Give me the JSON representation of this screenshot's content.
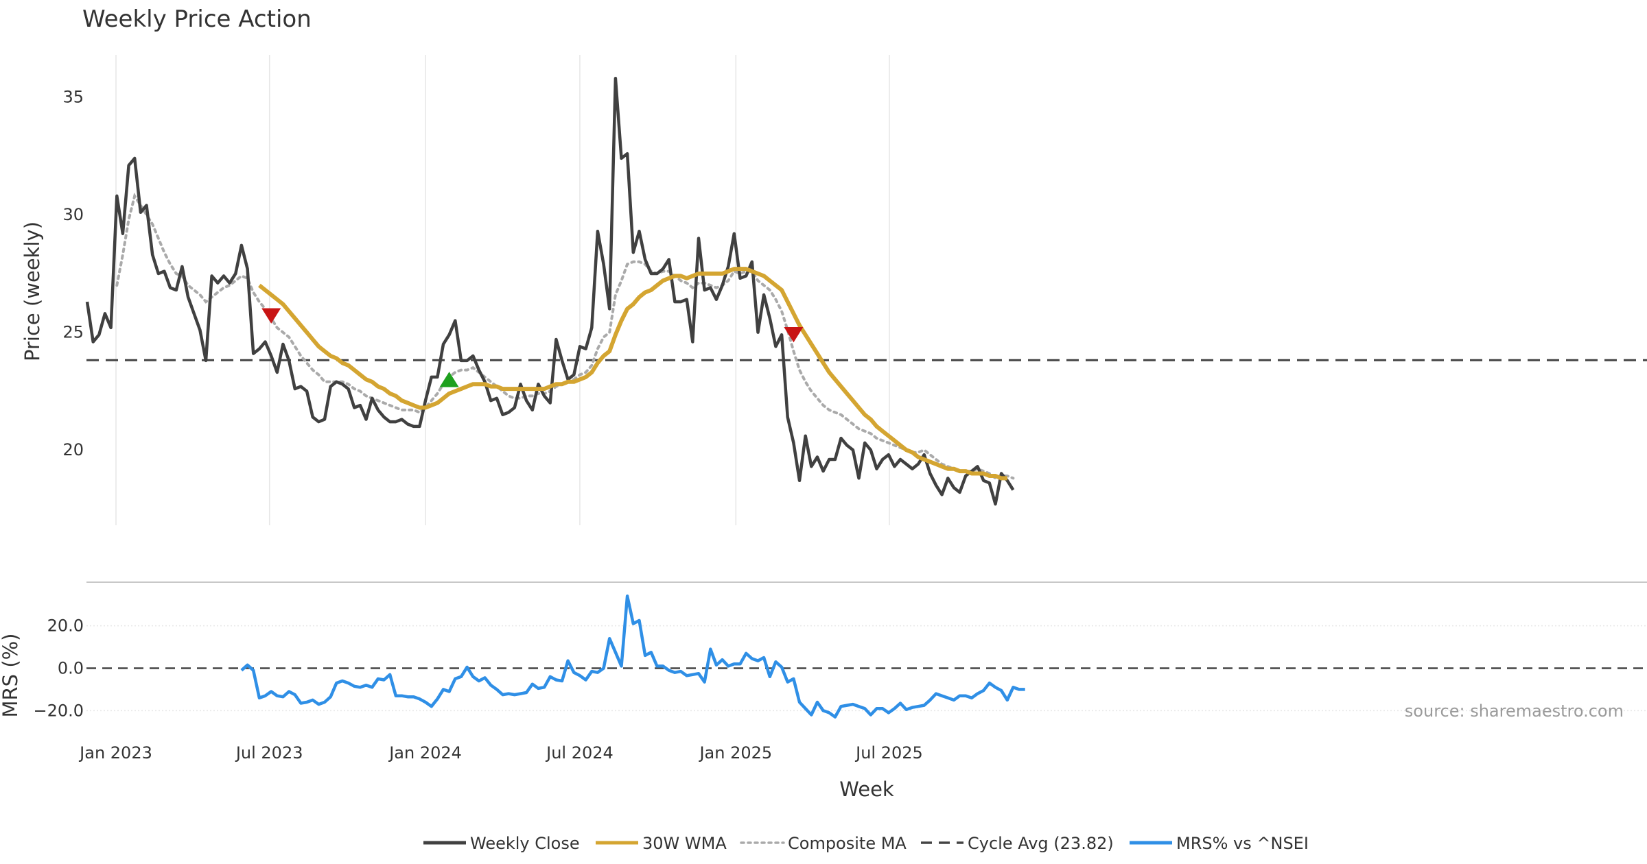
{
  "chart_data": {
    "type": "line",
    "title": "Weekly Price Action",
    "xlabel": "Week",
    "source": "source: sharemaestro.com",
    "colors": {
      "close": "#404040",
      "wma": "#d4a531",
      "composite": "#aaaaaa",
      "cycle": "#444444",
      "mrs": "#2f8fe6",
      "sell_marker": "#c81414",
      "buy_marker": "#1ea01e",
      "grid": "#e6e6e6"
    },
    "x_ticks": [
      "Jan 2023",
      "Jul 2023",
      "Jan 2024",
      "Jul 2024",
      "Jan 2025",
      "Jul 2025"
    ],
    "start_week": "2022-11-28",
    "legend": [
      {
        "label": "Weekly Close",
        "style": "solid",
        "color": "#404040"
      },
      {
        "label": "30W WMA",
        "style": "solid",
        "color": "#d4a531"
      },
      {
        "label": "Composite MA",
        "style": "dotted",
        "color": "#aaaaaa"
      },
      {
        "label": "Cycle Avg (23.82)",
        "style": "dashed",
        "color": "#444444"
      },
      {
        "label": "MRS% vs ^NSEI",
        "style": "solid",
        "color": "#2f8fe6"
      }
    ],
    "price_panel": {
      "ylabel": "Price (weekly)",
      "ylim": [
        16.8,
        36.8
      ],
      "yticks": [
        20,
        25,
        30,
        35
      ],
      "cycle_avg": 23.82,
      "weekly_close": [
        26.3,
        24.6,
        24.9,
        25.8,
        25.2,
        30.8,
        29.2,
        32.1,
        32.4,
        30.1,
        30.4,
        28.3,
        27.5,
        27.6,
        26.9,
        26.8,
        27.8,
        26.5,
        25.8,
        25.1,
        23.8,
        27.4,
        27.1,
        27.4,
        27.1,
        27.5,
        28.7,
        27.7,
        24.1,
        24.3,
        24.6,
        24.0,
        23.3,
        24.5,
        23.8,
        22.6,
        22.7,
        22.5,
        21.4,
        21.2,
        21.3,
        22.7,
        22.9,
        22.8,
        22.6,
        21.8,
        21.9,
        21.3,
        22.2,
        21.7,
        21.4,
        21.2,
        21.2,
        21.3,
        21.1,
        21.0,
        21.0,
        22.1,
        23.1,
        23.1,
        24.5,
        24.9,
        25.5,
        23.8,
        23.8,
        24.0,
        23.4,
        22.9,
        22.1,
        22.2,
        21.5,
        21.6,
        21.8,
        22.8,
        22.1,
        21.7,
        22.8,
        22.3,
        22.0,
        24.7,
        23.8,
        23.0,
        23.2,
        24.4,
        24.3,
        25.2,
        29.3,
        27.9,
        26.0,
        35.8,
        32.4,
        32.6,
        28.4,
        29.3,
        28.1,
        27.5,
        27.5,
        27.7,
        28.1,
        26.3,
        26.3,
        26.4,
        24.6,
        29.0,
        26.8,
        26.9,
        26.4,
        27.0,
        27.8,
        29.2,
        27.3,
        27.4,
        28.0,
        25.0,
        26.6,
        25.6,
        24.4,
        24.9,
        21.4,
        20.3,
        18.7,
        20.6,
        19.3,
        19.7,
        19.1,
        19.6,
        19.6,
        20.5,
        20.2,
        20.0,
        18.8,
        20.3,
        20.0,
        19.2,
        19.6,
        19.8,
        19.3,
        19.6,
        19.4,
        19.2,
        19.4,
        19.8,
        19.0,
        18.5,
        18.1,
        18.8,
        18.4,
        18.2,
        18.9,
        19.1,
        19.3,
        18.7,
        18.6,
        17.7,
        19.0,
        18.7,
        18.3
      ],
      "composite_ma": [
        null,
        null,
        null,
        null,
        null,
        27.0,
        28.3,
        29.8,
        30.8,
        30.4,
        30.0,
        29.6,
        29.0,
        28.4,
        27.9,
        27.5,
        27.4,
        27.0,
        26.8,
        26.6,
        26.3,
        26.5,
        26.7,
        26.9,
        27.0,
        27.2,
        27.4,
        27.3,
        26.7,
        26.3,
        26.0,
        25.6,
        25.2,
        25.0,
        24.8,
        24.4,
        24.0,
        23.7,
        23.4,
        23.2,
        22.9,
        22.9,
        22.9,
        22.9,
        22.8,
        22.6,
        22.5,
        22.3,
        22.2,
        22.1,
        22.0,
        21.9,
        21.8,
        21.7,
        21.7,
        21.7,
        21.6,
        21.8,
        22.1,
        22.4,
        22.8,
        23.1,
        23.3,
        23.4,
        23.4,
        23.5,
        23.3,
        23.1,
        22.9,
        22.7,
        22.5,
        22.3,
        22.2,
        22.2,
        22.3,
        22.3,
        22.4,
        22.4,
        22.5,
        22.7,
        22.8,
        22.9,
        23.0,
        23.2,
        23.3,
        23.6,
        24.3,
        24.8,
        25.0,
        26.6,
        27.2,
        27.9,
        28.0,
        28.0,
        27.9,
        27.6,
        27.5,
        27.6,
        27.6,
        27.4,
        27.2,
        27.1,
        26.9,
        27.1,
        27.1,
        27.0,
        26.9,
        27.0,
        27.2,
        27.6,
        27.5,
        27.6,
        27.6,
        27.2,
        27.0,
        26.8,
        26.4,
        25.9,
        25.1,
        24.2,
        23.4,
        22.9,
        22.5,
        22.2,
        21.9,
        21.7,
        21.6,
        21.5,
        21.3,
        21.1,
        20.9,
        20.8,
        20.7,
        20.5,
        20.4,
        20.3,
        20.2,
        20.1,
        20.0,
        19.9,
        19.9,
        20.0,
        19.8,
        19.6,
        19.4,
        19.3,
        19.2,
        19.1,
        19.1,
        19.1,
        19.2,
        19.1,
        19.0,
        18.8,
        18.9,
        18.9,
        18.8
      ],
      "wma_30w": [
        null,
        null,
        null,
        null,
        null,
        null,
        null,
        null,
        null,
        null,
        null,
        null,
        null,
        null,
        null,
        null,
        null,
        null,
        null,
        null,
        null,
        null,
        null,
        null,
        null,
        null,
        null,
        null,
        null,
        27.0,
        26.8,
        26.6,
        26.4,
        26.2,
        25.9,
        25.6,
        25.3,
        25.0,
        24.7,
        24.4,
        24.2,
        24.0,
        23.9,
        23.7,
        23.6,
        23.4,
        23.2,
        23.0,
        22.9,
        22.7,
        22.6,
        22.4,
        22.3,
        22.1,
        22.0,
        21.9,
        21.8,
        21.8,
        21.9,
        22.0,
        22.2,
        22.4,
        22.5,
        22.6,
        22.7,
        22.8,
        22.8,
        22.8,
        22.7,
        22.7,
        22.6,
        22.6,
        22.6,
        22.6,
        22.6,
        22.6,
        22.6,
        22.6,
        22.7,
        22.8,
        22.8,
        22.9,
        22.9,
        23.0,
        23.1,
        23.3,
        23.7,
        24.0,
        24.2,
        24.9,
        25.5,
        26.0,
        26.2,
        26.5,
        26.7,
        26.8,
        27.0,
        27.2,
        27.3,
        27.4,
        27.4,
        27.3,
        27.4,
        27.5,
        27.5,
        27.5,
        27.5,
        27.5,
        27.6,
        27.7,
        27.7,
        27.7,
        27.6,
        27.5,
        27.4,
        27.2,
        27.0,
        26.8,
        26.3,
        25.8,
        25.3,
        24.9,
        24.5,
        24.1,
        23.7,
        23.3,
        23.0,
        22.7,
        22.4,
        22.1,
        21.8,
        21.5,
        21.3,
        21.0,
        20.8,
        20.6,
        20.4,
        20.2,
        20.0,
        19.9,
        19.7,
        19.6,
        19.5,
        19.4,
        19.3,
        19.2,
        19.2,
        19.1,
        19.1,
        19.0,
        19.0,
        19.0,
        18.9,
        18.9,
        18.8,
        18.8
      ],
      "markers": [
        {
          "type": "sell",
          "week_index": 31,
          "price": 25.7
        },
        {
          "type": "buy",
          "week_index": 61,
          "price": 23.0
        },
        {
          "type": "sell",
          "week_index": 119,
          "price": 24.9
        }
      ]
    },
    "mrs_panel": {
      "ylabel": "MRS (%)",
      "ylim": [
        -27,
        37
      ],
      "yticks": [
        -20.0,
        0.0,
        20.0
      ],
      "ytick_labels": [
        "−20.0",
        "0.0",
        "20.0"
      ],
      "start_index": 26,
      "mrs_pct": [
        -1.0,
        1.5,
        -1.0,
        -14.0,
        -13.0,
        -11.0,
        -13.0,
        -13.5,
        -11.0,
        -12.5,
        -16.5,
        -16.0,
        -15.0,
        -17.0,
        -16.0,
        -13.5,
        -7.0,
        -6.0,
        -7.0,
        -8.5,
        -9.0,
        -8.0,
        -9.0,
        -5.0,
        -5.5,
        -3.0,
        -13.0,
        -13.0,
        -13.5,
        -13.5,
        -14.5,
        -16.0,
        -18.0,
        -14.5,
        -10.0,
        -11.0,
        -5.0,
        -4.0,
        0.5,
        -4.0,
        -6.0,
        -4.5,
        -8.0,
        -10.0,
        -12.5,
        -12.0,
        -12.5,
        -12.0,
        -11.5,
        -7.5,
        -9.5,
        -9.0,
        -4.0,
        -5.5,
        -6.0,
        3.5,
        -2.0,
        -3.5,
        -5.5,
        -1.5,
        -2.0,
        0.0,
        14.0,
        7.5,
        1.0,
        34.0,
        21.0,
        22.5,
        6.0,
        7.5,
        1.0,
        1.0,
        -1.0,
        -2.0,
        -1.5,
        -3.5,
        -3.0,
        -2.5,
        -6.5,
        9.0,
        1.5,
        4.0,
        1.0,
        2.0,
        2.0,
        7.0,
        4.5,
        3.5,
        5.0,
        -4.0,
        3.0,
        0.5,
        -6.5,
        -5.0,
        -16.0,
        -19.0,
        -22.0,
        -16.0,
        -20.0,
        -21.0,
        -23.0,
        -18.0,
        -17.5,
        -17.0,
        -18.0,
        -19.0,
        -22.0,
        -19.0,
        -19.0,
        -21.0,
        -19.0,
        -16.5,
        -19.5,
        -18.5,
        -18.0,
        -17.5,
        -15.0,
        -12.0,
        -13.0,
        -14.0,
        -15.0,
        -13.0,
        -13.0,
        -14.0,
        -12.0,
        -10.5,
        -7.0,
        -9.0,
        -10.5,
        -15.0,
        -9.0,
        -10.0,
        -10.0
      ]
    }
  }
}
